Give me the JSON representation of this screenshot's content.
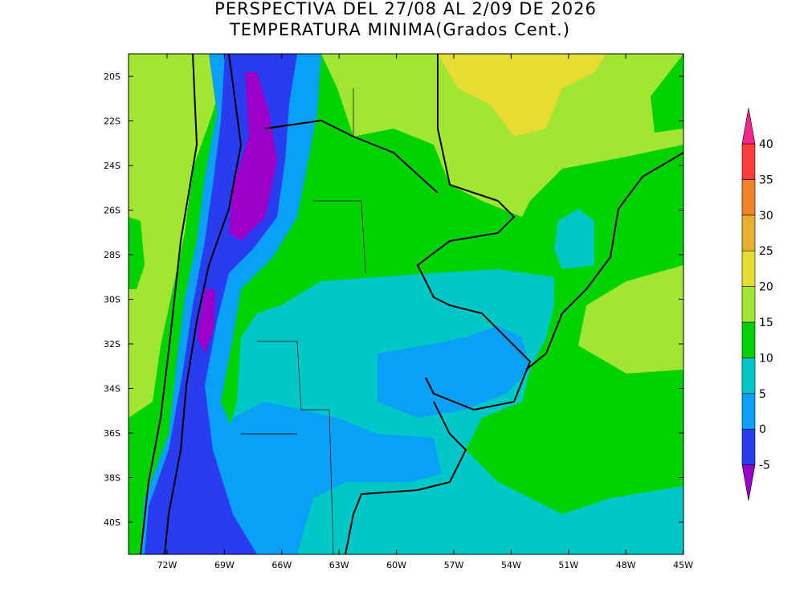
{
  "header": {
    "title": "PERSPECTIVA DEL 27/08 AL 2/09 DE 2026",
    "subtitle": "TEMPERATURA MINIMA(Grados Cent.)"
  },
  "map": {
    "lat_labels": [
      "20S",
      "22S",
      "24S",
      "26S",
      "28S",
      "30S",
      "32S",
      "34S",
      "36S",
      "38S",
      "40S"
    ],
    "lon_labels": [
      "72W",
      "69W",
      "66W",
      "63W",
      "60W",
      "57W",
      "54W",
      "51W",
      "48W",
      "45W"
    ]
  },
  "colorbar": {
    "levels": [
      -5,
      0,
      5,
      10,
      15,
      20,
      25,
      30,
      35,
      40
    ],
    "colors": [
      "#9b00c8",
      "#2a3cf0",
      "#0aa0f5",
      "#00c8c8",
      "#00d200",
      "#a0e632",
      "#e6dc32",
      "#e6af2d",
      "#f08228",
      "#fa3c3c",
      "#f0288c"
    ]
  }
}
